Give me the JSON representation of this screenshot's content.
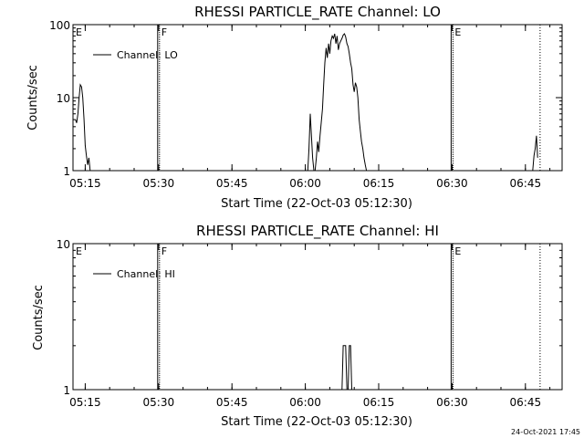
{
  "footer_date": "24-Oct-2021 17:45",
  "colors": {
    "background": "#ffffff",
    "foreground": "#000000"
  },
  "chart_data": [
    {
      "type": "line",
      "title": "RHESSI PARTICLE_RATE Channel: LO",
      "xlabel": "Start Time (22-Oct-03 05:12:30)",
      "ylabel": "Counts/sec",
      "yscale": "log",
      "ylim": [
        1,
        100
      ],
      "xlim": [
        "05:12:30",
        "06:52:30"
      ],
      "yticks": [
        {
          "value": 1,
          "label": "1"
        },
        {
          "value": 10,
          "label": "10"
        },
        {
          "value": 100,
          "label": "100"
        }
      ],
      "xticks": [
        {
          "value": "05:15",
          "label": "05:15"
        },
        {
          "value": "05:30",
          "label": "05:30"
        },
        {
          "value": "05:45",
          "label": "05:45"
        },
        {
          "value": "06:00",
          "label": "06:00"
        },
        {
          "value": "06:15",
          "label": "06:15"
        },
        {
          "value": "06:30",
          "label": "06:30"
        },
        {
          "value": "06:45",
          "label": "06:45"
        }
      ],
      "legend": {
        "position": "top-left",
        "entries": [
          "Channel: LO"
        ]
      },
      "vlines": [
        {
          "x": "05:30",
          "label": "F",
          "style": "solid"
        },
        {
          "x": "06:30",
          "label": "E",
          "style": "solid"
        },
        {
          "x": "06:48",
          "label": "",
          "style": "dotted"
        }
      ],
      "edge_label": "E",
      "series": [
        {
          "name": "Channel: LO",
          "segments": [
            {
              "x": [
                "05:13:00",
                "05:13:15",
                "05:13:30",
                "05:13:45",
                "05:14:00",
                "05:14:15",
                "05:14:30",
                "05:14:45",
                "05:15:00",
                "05:15:15",
                "05:15:30",
                "05:15:45",
                "05:16:00"
              ],
              "y": [
                5,
                4.5,
                6,
                10,
                15,
                14,
                10,
                5,
                2.2,
                1.6,
                1.2,
                1.5,
                1
              ]
            },
            {
              "x": [
                "06:00:30",
                "06:00:45",
                "06:01:00",
                "06:01:15",
                "06:01:30",
                "06:01:45",
                "06:02:00",
                "06:02:15",
                "06:02:30",
                "06:02:45",
                "06:03:00",
                "06:03:15",
                "06:03:30",
                "06:03:45",
                "06:04:00",
                "06:04:15",
                "06:04:30",
                "06:04:45",
                "06:05:00",
                "06:05:15",
                "06:05:30",
                "06:05:45",
                "06:06:00",
                "06:06:15",
                "06:06:30",
                "06:06:45",
                "06:07:00",
                "06:07:15",
                "06:07:30",
                "06:07:45",
                "06:08:00",
                "06:08:15",
                "06:08:30",
                "06:08:45",
                "06:09:00",
                "06:09:15",
                "06:09:30",
                "06:09:45",
                "06:10:00",
                "06:10:15",
                "06:10:30",
                "06:10:45",
                "06:11:00",
                "06:11:15",
                "06:11:30",
                "06:11:45",
                "06:12:00",
                "06:12:15",
                "06:12:30",
                "06:12:45",
                "06:13:00",
                "06:13:15",
                "06:13:30",
                "06:13:45",
                "06:14:00",
                "06:14:15",
                "06:14:30",
                "06:14:45",
                "06:15:00"
              ],
              "y": [
                1,
                2,
                6,
                3,
                1.5,
                1,
                1,
                1.5,
                2.5,
                1.8,
                3,
                4.5,
                7,
                15,
                30,
                48,
                35,
                55,
                40,
                60,
                70,
                65,
                75,
                55,
                70,
                45,
                55,
                60,
                65,
                72,
                75,
                68,
                55,
                50,
                40,
                30,
                25,
                15,
                12,
                16,
                14,
                10,
                5,
                3.5,
                2.5,
                2,
                1.5,
                1.2,
                1,
                1,
                1,
                1,
                1,
                1,
                1,
                1,
                1,
                1,
                1
              ]
            },
            {
              "x": [
                "06:46:30",
                "06:46:45",
                "06:47:00",
                "06:47:15",
                "06:47:30"
              ],
              "y": [
                1,
                1.6,
                2,
                3,
                1.5
              ]
            }
          ]
        }
      ]
    },
    {
      "type": "line",
      "title": "RHESSI PARTICLE_RATE Channel: HI",
      "xlabel": "Start Time (22-Oct-03 05:12:30)",
      "ylabel": "Counts/sec",
      "yscale": "log",
      "ylim": [
        1,
        10
      ],
      "xlim": [
        "05:12:30",
        "06:52:30"
      ],
      "yticks": [
        {
          "value": 1,
          "label": "1"
        },
        {
          "value": 10,
          "label": "10"
        }
      ],
      "xticks": [
        {
          "value": "05:15",
          "label": "05:15"
        },
        {
          "value": "05:30",
          "label": "05:30"
        },
        {
          "value": "05:45",
          "label": "05:45"
        },
        {
          "value": "06:00",
          "label": "06:00"
        },
        {
          "value": "06:15",
          "label": "06:15"
        },
        {
          "value": "06:30",
          "label": "06:30"
        },
        {
          "value": "06:45",
          "label": "06:45"
        }
      ],
      "legend": {
        "position": "top-left",
        "entries": [
          "Channel: HI"
        ]
      },
      "vlines": [
        {
          "x": "05:30",
          "label": "F",
          "style": "solid"
        },
        {
          "x": "06:30",
          "label": "E",
          "style": "solid"
        },
        {
          "x": "06:48",
          "label": "",
          "style": "dotted"
        }
      ],
      "edge_label": "E",
      "series": [
        {
          "name": "Channel: HI",
          "segments": [
            {
              "x": [
                "06:07:30",
                "06:07:45",
                "06:08:00",
                "06:08:15",
                "06:08:30",
                "06:08:45",
                "06:09:00",
                "06:09:15",
                "06:09:30"
              ],
              "y": [
                1,
                2,
                2,
                2,
                1,
                1,
                2,
                2,
                1
              ]
            }
          ]
        }
      ]
    }
  ]
}
